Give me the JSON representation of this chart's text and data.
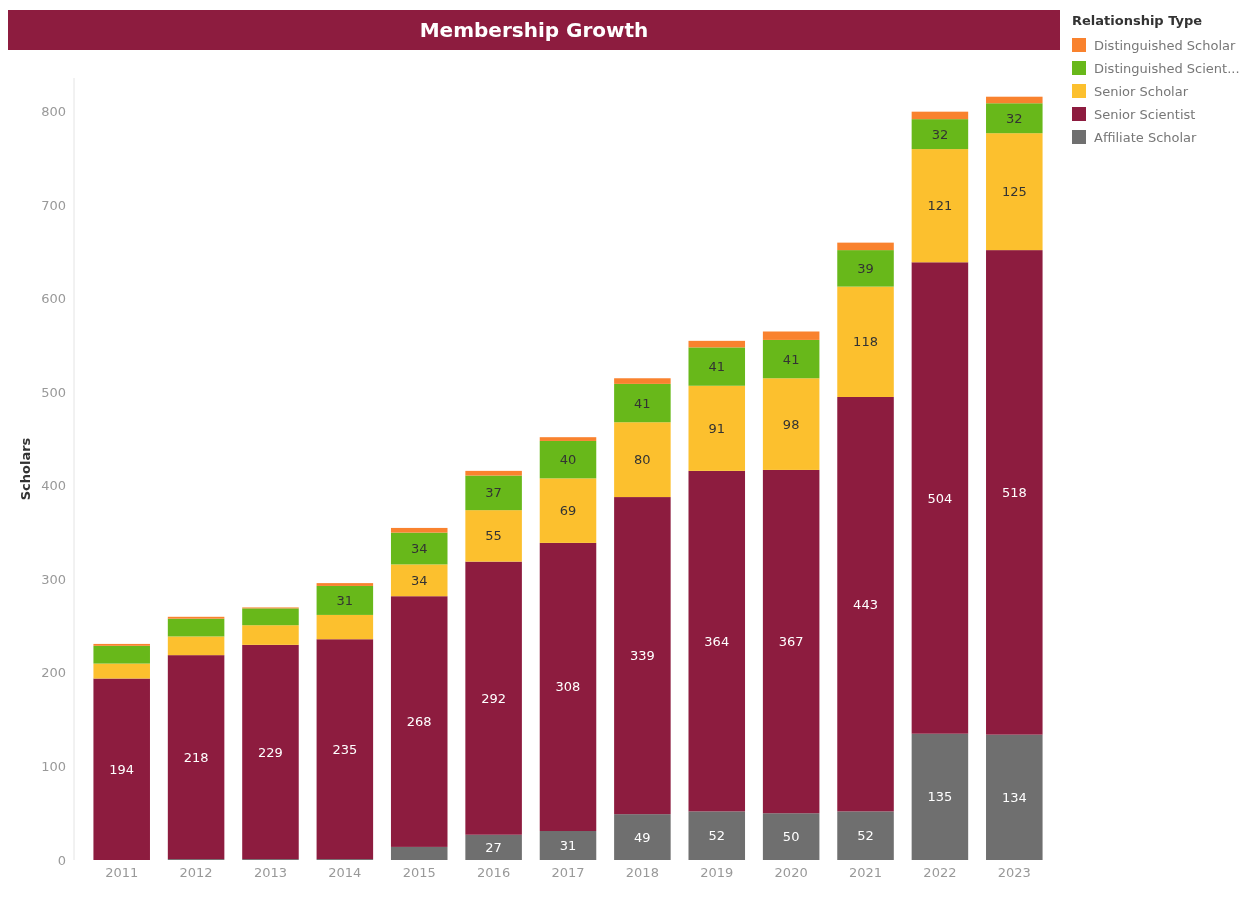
{
  "chart_data": {
    "type": "bar",
    "title": "Membership Growth",
    "ylabel": "Scholars",
    "legend_title": "Relationship Type",
    "stacked": true,
    "legend": "top right",
    "grid": false,
    "categories": [
      "2011",
      "2012",
      "2013",
      "2014",
      "2015",
      "2016",
      "2017",
      "2018",
      "2019",
      "2020",
      "2021",
      "2022",
      "2023"
    ],
    "ylim": [
      0,
      836
    ],
    "yticks": [
      0,
      100,
      200,
      300,
      400,
      500,
      600,
      700,
      800
    ],
    "series": [
      {
        "name": "Affiliate Scholar",
        "color": "#6f6f6f",
        "values": [
          0,
          1,
          1,
          1,
          14,
          27,
          31,
          49,
          52,
          50,
          52,
          135,
          134
        ],
        "value_labels": [
          null,
          null,
          null,
          null,
          null,
          "27",
          "31",
          "49",
          "52",
          "50",
          "52",
          "135",
          "134"
        ]
      },
      {
        "name": "Senior Scientist",
        "color": "#8d1c3f",
        "values": [
          194,
          218,
          229,
          235,
          268,
          292,
          308,
          339,
          364,
          367,
          443,
          504,
          518
        ],
        "value_labels": [
          "194",
          "218",
          "229",
          "235",
          "268",
          "292",
          "308",
          "339",
          "364",
          "367",
          "443",
          "504",
          "518"
        ]
      },
      {
        "name": "Senior Scholar",
        "color": "#fcc02e",
        "values": [
          16,
          20,
          21,
          26,
          34,
          55,
          69,
          80,
          91,
          98,
          118,
          121,
          125
        ],
        "value_labels": [
          null,
          null,
          null,
          null,
          "34",
          "55",
          "69",
          "80",
          "91",
          "98",
          "118",
          "121",
          "125"
        ]
      },
      {
        "name": "Distinguished Scient...",
        "color": "#68b81a",
        "values": [
          19,
          19,
          18,
          31,
          34,
          37,
          40,
          41,
          41,
          41,
          39,
          32,
          32
        ],
        "value_labels": [
          null,
          null,
          null,
          "31",
          "34",
          "37",
          "40",
          "41",
          "41",
          "41",
          "39",
          "32",
          "32"
        ]
      },
      {
        "name": "Distinguished Scholar",
        "color": "#f9822e",
        "values": [
          2,
          2,
          1,
          3,
          5,
          5,
          4,
          6,
          7,
          9,
          8,
          8,
          7
        ],
        "value_labels": [
          null,
          null,
          null,
          null,
          null,
          null,
          null,
          null,
          null,
          null,
          null,
          null,
          null
        ]
      }
    ]
  }
}
